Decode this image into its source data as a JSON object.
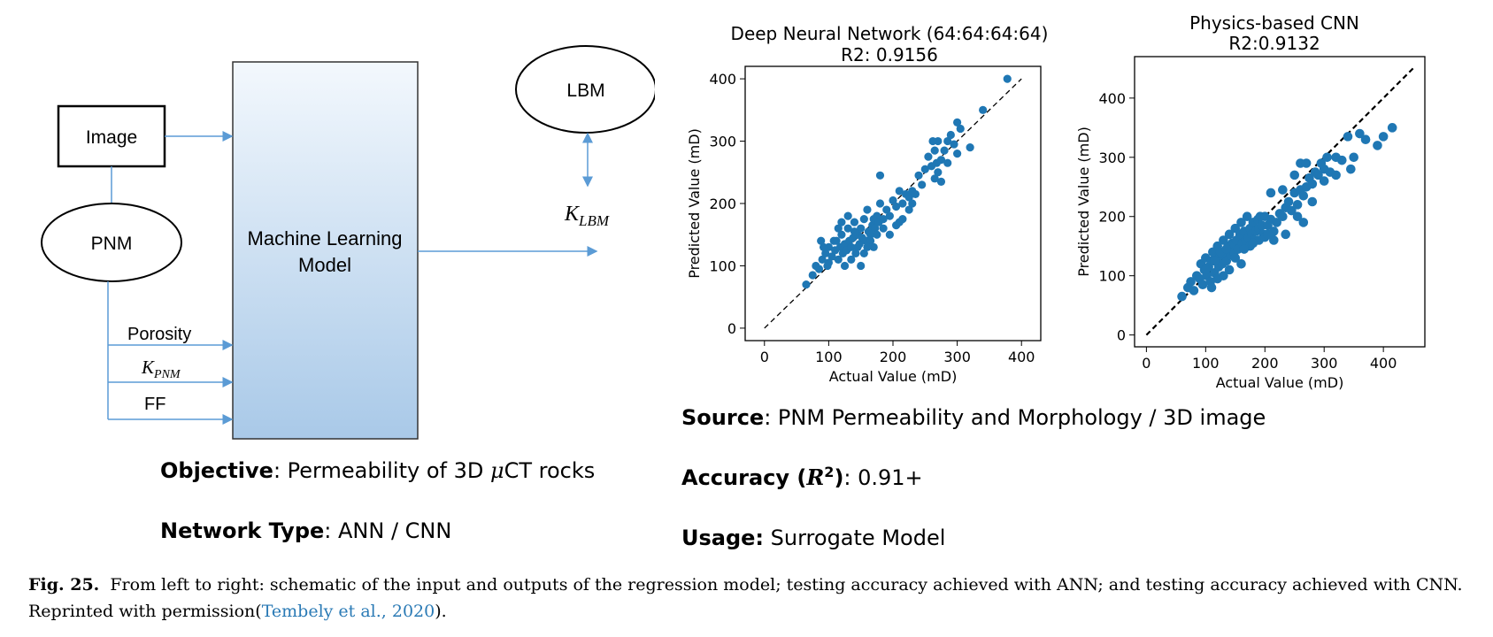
{
  "schematic": {
    "image_label": "Image",
    "pnm_label": "PNM",
    "model_label_line1": "Machine Learning",
    "model_label_line2": "Model",
    "lbm_label": "LBM",
    "klbm_main": "K",
    "klbm_sub": "LBM",
    "porosity_label": "Porosity",
    "kpnm_main": "K",
    "kpnm_sub": "PNM",
    "ff_label": "FF",
    "colors": {
      "arrow": "#5b9bd5",
      "box_top": "#f3f8fd",
      "box_bottom": "#a9c9e8"
    }
  },
  "info": {
    "objective_key": "Objective",
    "objective_value_pre": ": Permeability of 3D ",
    "objective_mu": "μ",
    "objective_value_post": "CT rocks",
    "network_key": "Network Type",
    "network_value": ": ANN / CNN",
    "source_key": "Source",
    "source_value": ": PNM Permeability and Morphology / 3D image",
    "accuracy_key_pre": "Accuracy (",
    "accuracy_R": "R",
    "accuracy_exp": "2",
    "accuracy_key_post": ")",
    "accuracy_value": ": 0.91+",
    "usage_key": "Usage:",
    "usage_value": " Surrogate Model"
  },
  "caption": {
    "fig_label": "Fig. 25.",
    "text": "From left to right: schematic of the input and outputs of the regression model; testing accuracy achieved with ANN; and testing accuracy achieved with CNN. Reprinted with permission(",
    "citation": "Tembely et al., 2020",
    "text_end": ")."
  },
  "chart_data": [
    {
      "type": "scatter",
      "title": "Deep Neural Network (64:64:64:64)",
      "subtitle": "R2: 0.9156",
      "xlabel": "Actual Value (mD)",
      "ylabel": "Predicted Value (mD)",
      "xlim": [
        -30,
        430
      ],
      "ylim": [
        -20,
        420
      ],
      "xticks": [
        0,
        100,
        200,
        300,
        400
      ],
      "yticks": [
        0,
        100,
        200,
        300,
        400
      ],
      "point_color": "#1f77b4",
      "reference_line": {
        "style": "dashed",
        "from": [
          0,
          0
        ],
        "to": [
          400,
          400
        ]
      },
      "points": [
        [
          65,
          70
        ],
        [
          75,
          85
        ],
        [
          80,
          100
        ],
        [
          85,
          95
        ],
        [
          90,
          110
        ],
        [
          95,
          120
        ],
        [
          100,
          105
        ],
        [
          100,
          130
        ],
        [
          105,
          115
        ],
        [
          110,
          125
        ],
        [
          112,
          140
        ],
        [
          115,
          110
        ],
        [
          118,
          130
        ],
        [
          120,
          150
        ],
        [
          122,
          120
        ],
        [
          125,
          135
        ],
        [
          128,
          125
        ],
        [
          130,
          160
        ],
        [
          132,
          140
        ],
        [
          135,
          130
        ],
        [
          138,
          145
        ],
        [
          140,
          170
        ],
        [
          142,
          120
        ],
        [
          145,
          150
        ],
        [
          148,
          135
        ],
        [
          150,
          160
        ],
        [
          152,
          145
        ],
        [
          155,
          175
        ],
        [
          158,
          140
        ],
        [
          160,
          190
        ],
        [
          162,
          155
        ],
        [
          165,
          150
        ],
        [
          168,
          165
        ],
        [
          170,
          175
        ],
        [
          172,
          160
        ],
        [
          175,
          180
        ],
        [
          178,
          170
        ],
        [
          180,
          200
        ],
        [
          185,
          175
        ],
        [
          190,
          190
        ],
        [
          195,
          180
        ],
        [
          200,
          205
        ],
        [
          205,
          195
        ],
        [
          210,
          220
        ],
        [
          215,
          200
        ],
        [
          220,
          215
        ],
        [
          225,
          210
        ],
        [
          230,
          220
        ],
        [
          235,
          215
        ],
        [
          240,
          245
        ],
        [
          180,
          245
        ],
        [
          255,
          275
        ],
        [
          260,
          260
        ],
        [
          265,
          240
        ],
        [
          265,
          285
        ],
        [
          270,
          250
        ],
        [
          270,
          300
        ],
        [
          275,
          235
        ],
        [
          275,
          270
        ],
        [
          280,
          285
        ],
        [
          285,
          300
        ],
        [
          290,
          310
        ],
        [
          295,
          295
        ],
        [
          300,
          330
        ],
        [
          305,
          320
        ],
        [
          320,
          290
        ],
        [
          340,
          350
        ],
        [
          378,
          400
        ],
        [
          88,
          140
        ],
        [
          92,
          130
        ],
        [
          98,
          100
        ],
        [
          108,
          140
        ],
        [
          125,
          100
        ],
        [
          135,
          110
        ],
        [
          145,
          130
        ],
        [
          150,
          100
        ],
        [
          155,
          120
        ],
        [
          165,
          140
        ],
        [
          170,
          130
        ],
        [
          115,
          160
        ],
        [
          120,
          170
        ],
        [
          130,
          180
        ],
        [
          140,
          155
        ],
        [
          160,
          130
        ],
        [
          175,
          150
        ],
        [
          185,
          160
        ],
        [
          195,
          150
        ],
        [
          205,
          165
        ],
        [
          215,
          175
        ],
        [
          225,
          190
        ],
        [
          210,
          170
        ],
        [
          230,
          200
        ],
        [
          245,
          230
        ],
        [
          250,
          255
        ],
        [
          285,
          265
        ],
        [
          300,
          280
        ],
        [
          262,
          300
        ],
        [
          268,
          265
        ]
      ]
    },
    {
      "type": "scatter",
      "title": "Physics-based CNN",
      "subtitle": "R2:0.9132",
      "xlabel": "Actual Value (mD)",
      "ylabel": "Predicted Value (mD)",
      "xlim": [
        -20,
        470
      ],
      "ylim": [
        -20,
        470
      ],
      "xticks": [
        0,
        100,
        200,
        300,
        400
      ],
      "yticks": [
        0,
        100,
        200,
        300,
        400
      ],
      "point_color": "#1f77b4",
      "reference_line": {
        "style": "dashed",
        "from": [
          0,
          0
        ],
        "to": [
          450,
          450
        ]
      },
      "points": [
        [
          60,
          65
        ],
        [
          70,
          80
        ],
        [
          75,
          90
        ],
        [
          80,
          75
        ],
        [
          85,
          100
        ],
        [
          90,
          95
        ],
        [
          92,
          120
        ],
        [
          95,
          85
        ],
        [
          98,
          110
        ],
        [
          100,
          130
        ],
        [
          102,
          100
        ],
        [
          105,
          115
        ],
        [
          108,
          90
        ],
        [
          110,
          125
        ],
        [
          112,
          140
        ],
        [
          115,
          105
        ],
        [
          118,
          130
        ],
        [
          120,
          150
        ],
        [
          122,
          115
        ],
        [
          125,
          135
        ],
        [
          128,
          120
        ],
        [
          130,
          160
        ],
        [
          132,
          140
        ],
        [
          135,
          125
        ],
        [
          138,
          150
        ],
        [
          140,
          170
        ],
        [
          142,
          135
        ],
        [
          145,
          155
        ],
        [
          148,
          140
        ],
        [
          150,
          180
        ],
        [
          152,
          160
        ],
        [
          155,
          145
        ],
        [
          158,
          170
        ],
        [
          160,
          190
        ],
        [
          162,
          155
        ],
        [
          165,
          175
        ],
        [
          168,
          160
        ],
        [
          170,
          200
        ],
        [
          172,
          165
        ],
        [
          175,
          180
        ],
        [
          178,
          170
        ],
        [
          180,
          190
        ],
        [
          182,
          160
        ],
        [
          185,
          175
        ],
        [
          188,
          195
        ],
        [
          190,
          180
        ],
        [
          192,
          200
        ],
        [
          195,
          185
        ],
        [
          198,
          170
        ],
        [
          200,
          200
        ],
        [
          205,
          185
        ],
        [
          210,
          195
        ],
        [
          215,
          175
        ],
        [
          220,
          190
        ],
        [
          225,
          205
        ],
        [
          230,
          200
        ],
        [
          235,
          215
        ],
        [
          240,
          225
        ],
        [
          245,
          210
        ],
        [
          250,
          240
        ],
        [
          255,
          220
        ],
        [
          260,
          245
        ],
        [
          265,
          235
        ],
        [
          270,
          250
        ],
        [
          275,
          265
        ],
        [
          280,
          255
        ],
        [
          285,
          275
        ],
        [
          290,
          270
        ],
        [
          295,
          290
        ],
        [
          300,
          280
        ],
        [
          305,
          300
        ],
        [
          310,
          275
        ],
        [
          320,
          270
        ],
        [
          330,
          295
        ],
        [
          340,
          335
        ],
        [
          350,
          300
        ],
        [
          370,
          330
        ],
        [
          390,
          320
        ],
        [
          400,
          335
        ],
        [
          415,
          350
        ],
        [
          260,
          290
        ],
        [
          270,
          290
        ],
        [
          250,
          270
        ],
        [
          230,
          245
        ],
        [
          210,
          240
        ],
        [
          175,
          150
        ],
        [
          190,
          160
        ],
        [
          200,
          165
        ],
        [
          160,
          120
        ],
        [
          140,
          110
        ],
        [
          130,
          100
        ],
        [
          120,
          95
        ],
        [
          110,
          80
        ],
        [
          150,
          130
        ],
        [
          165,
          145
        ],
        [
          180,
          155
        ],
        [
          205,
          170
        ],
        [
          215,
          160
        ],
        [
          235,
          170
        ],
        [
          255,
          200
        ],
        [
          265,
          190
        ],
        [
          280,
          225
        ],
        [
          300,
          260
        ],
        [
          320,
          300
        ],
        [
          345,
          280
        ],
        [
          360,
          340
        ],
        [
          100,
          110
        ],
        [
          115,
          125
        ],
        [
          125,
          140
        ],
        [
          135,
          145
        ]
      ]
    }
  ]
}
